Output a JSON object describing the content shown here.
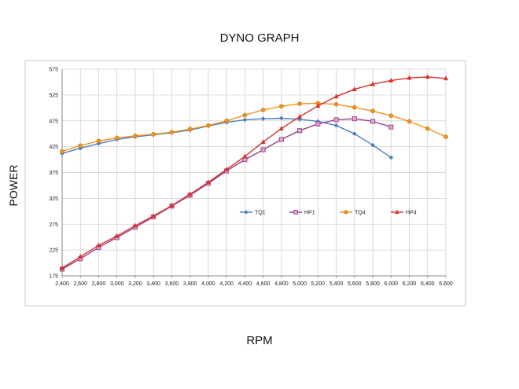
{
  "chart_data": {
    "type": "line",
    "title": "DYNO GRAPH",
    "xlabel": "RPM",
    "ylabel": "POWER",
    "xlim": [
      2400,
      6600
    ],
    "ylim": [
      175,
      575
    ],
    "x_ticks": [
      "2,400",
      "2,600",
      "2,800",
      "3,000",
      "3,200",
      "3,400",
      "3,600",
      "3,800",
      "4,000",
      "4,200",
      "4,400",
      "4,600",
      "4,800",
      "5,000",
      "5,200",
      "5,400",
      "5,600",
      "5,800",
      "6,000",
      "6,200",
      "6,400",
      "6,600"
    ],
    "y_ticks": [
      "175",
      "225",
      "275",
      "325",
      "375",
      "425",
      "475",
      "525",
      "575"
    ],
    "grid": true,
    "legend_position": "center",
    "series": [
      {
        "name": "TQ1",
        "color": "#4a7ec0",
        "marker": "diamond",
        "x": [
          2400,
          2600,
          2800,
          3000,
          3200,
          3400,
          3600,
          3800,
          4000,
          4200,
          4400,
          4600,
          4800,
          5000,
          5200,
          5400,
          5600,
          5800,
          6000
        ],
        "values": [
          412,
          422,
          431,
          439,
          444,
          448,
          452,
          457,
          465,
          472,
          477,
          479,
          480,
          478,
          474,
          466,
          450,
          428,
          404
        ]
      },
      {
        "name": "HP1",
        "color": "#9b3f8a",
        "marker": "square",
        "x": [
          2400,
          2600,
          2800,
          3000,
          3200,
          3400,
          3600,
          3800,
          4000,
          4200,
          4400,
          4600,
          4800,
          5000,
          5200,
          5400,
          5600,
          5800,
          6000
        ],
        "values": [
          188,
          208,
          230,
          249,
          269,
          289,
          310,
          331,
          354,
          378,
          400,
          419,
          439,
          456,
          469,
          477,
          479,
          474,
          463
        ]
      },
      {
        "name": "TQ4",
        "color": "#f0921e",
        "marker": "circle",
        "x": [
          2400,
          2600,
          2800,
          3000,
          3200,
          3400,
          3600,
          3800,
          4000,
          4200,
          4400,
          4600,
          4800,
          5000,
          5200,
          5400,
          5600,
          5800,
          6000,
          6200,
          6400,
          6600
        ],
        "values": [
          416,
          427,
          436,
          442,
          446,
          449,
          453,
          459,
          466,
          475,
          486,
          496,
          503,
          508,
          509,
          507,
          501,
          494,
          485,
          474,
          460,
          444
        ]
      },
      {
        "name": "HP4",
        "color": "#d9302a",
        "marker": "triangle",
        "x": [
          2400,
          2600,
          2800,
          3000,
          3200,
          3400,
          3600,
          3800,
          4000,
          4200,
          4400,
          4600,
          4800,
          5000,
          5200,
          5400,
          5600,
          5800,
          6000,
          6200,
          6400,
          6600
        ],
        "values": [
          190,
          212,
          234,
          252,
          272,
          291,
          311,
          333,
          356,
          381,
          406,
          434,
          460,
          483,
          504,
          522,
          536,
          546,
          553,
          558,
          560,
          557
        ]
      }
    ]
  }
}
